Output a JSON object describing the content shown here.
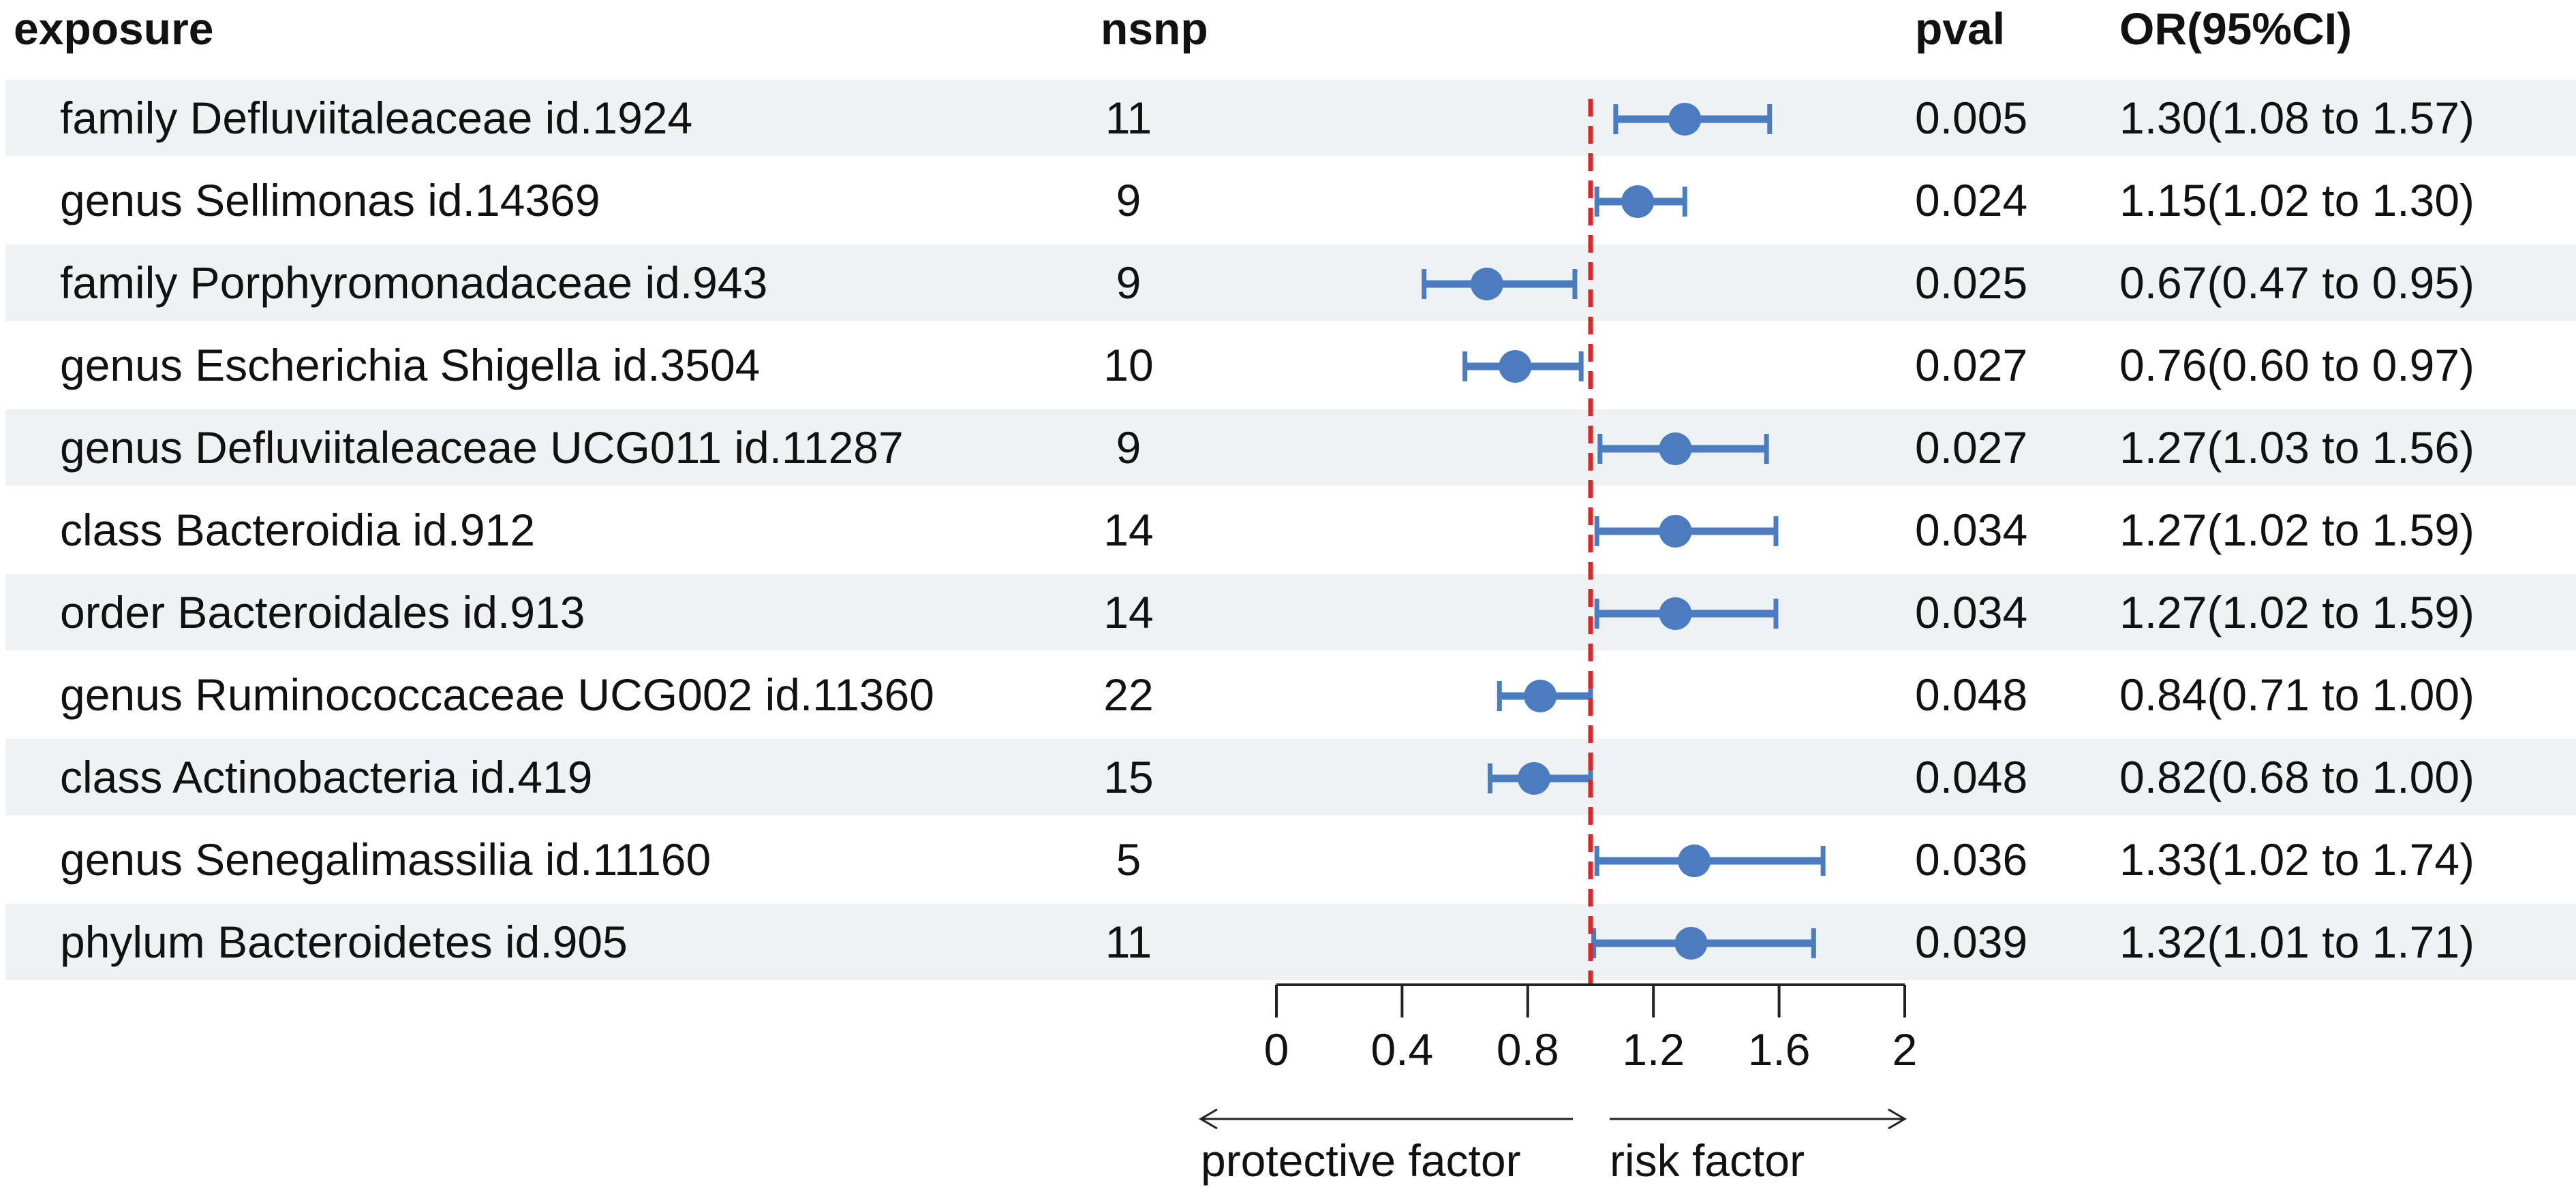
{
  "headers": {
    "exposure": "exposure",
    "nsnp": "nsnp",
    "pval": "pval",
    "or": "OR(95%CI)"
  },
  "colors": {
    "point": "#4a7cbf",
    "reference_line": "#d42a2a",
    "row_shade": "#eef2f2",
    "axis": "#222222"
  },
  "chart_data": {
    "type": "forest",
    "title": "",
    "x_axis": {
      "min": 0,
      "max": 2,
      "ticks": [
        0,
        0.4,
        0.8,
        1.2,
        1.6,
        2
      ],
      "tick_labels": [
        "0",
        "0.4",
        "0.8",
        "1.2",
        "1.6",
        "2"
      ],
      "reference": 1
    },
    "annotations": {
      "left": "protective factor",
      "right": "risk factor"
    },
    "rows": [
      {
        "exposure": "family Defluviitaleaceae id.1924",
        "nsnp": "11",
        "pval": "0.005",
        "or_text": "1.30(1.08 to 1.57)",
        "or": 1.3,
        "lo": 1.08,
        "hi": 1.57
      },
      {
        "exposure": "genus Sellimonas id.14369",
        "nsnp": "9",
        "pval": "0.024",
        "or_text": "1.15(1.02 to 1.30)",
        "or": 1.15,
        "lo": 1.02,
        "hi": 1.3
      },
      {
        "exposure": "family Porphyromonadaceae id.943",
        "nsnp": "9",
        "pval": "0.025",
        "or_text": "0.67(0.47 to 0.95)",
        "or": 0.67,
        "lo": 0.47,
        "hi": 0.95
      },
      {
        "exposure": "genus Escherichia Shigella id.3504",
        "nsnp": "10",
        "pval": "0.027",
        "or_text": "0.76(0.60 to 0.97)",
        "or": 0.76,
        "lo": 0.6,
        "hi": 0.97
      },
      {
        "exposure": "genus Defluviitaleaceae UCG011 id.11287",
        "nsnp": "9",
        "pval": "0.027",
        "or_text": "1.27(1.03 to 1.56)",
        "or": 1.27,
        "lo": 1.03,
        "hi": 1.56
      },
      {
        "exposure": "class Bacteroidia id.912",
        "nsnp": "14",
        "pval": "0.034",
        "or_text": "1.27(1.02 to 1.59)",
        "or": 1.27,
        "lo": 1.02,
        "hi": 1.59
      },
      {
        "exposure": "order Bacteroidales id.913",
        "nsnp": "14",
        "pval": "0.034",
        "or_text": "1.27(1.02 to 1.59)",
        "or": 1.27,
        "lo": 1.02,
        "hi": 1.59
      },
      {
        "exposure": "genus Ruminococcaceae UCG002 id.11360",
        "nsnp": "22",
        "pval": "0.048",
        "or_text": "0.84(0.71 to 1.00)",
        "or": 0.84,
        "lo": 0.71,
        "hi": 1.0
      },
      {
        "exposure": "class Actinobacteria id.419",
        "nsnp": "15",
        "pval": "0.048",
        "or_text": "0.82(0.68 to 1.00)",
        "or": 0.82,
        "lo": 0.68,
        "hi": 1.0
      },
      {
        "exposure": "genus Senegalimassilia id.11160",
        "nsnp": "5",
        "pval": "0.036",
        "or_text": "1.33(1.02 to 1.74)",
        "or": 1.33,
        "lo": 1.02,
        "hi": 1.74
      },
      {
        "exposure": "phylum Bacteroidetes id.905",
        "nsnp": "11",
        "pval": "0.039",
        "or_text": "1.32(1.01 to 1.71)",
        "or": 1.32,
        "lo": 1.01,
        "hi": 1.71
      }
    ]
  }
}
